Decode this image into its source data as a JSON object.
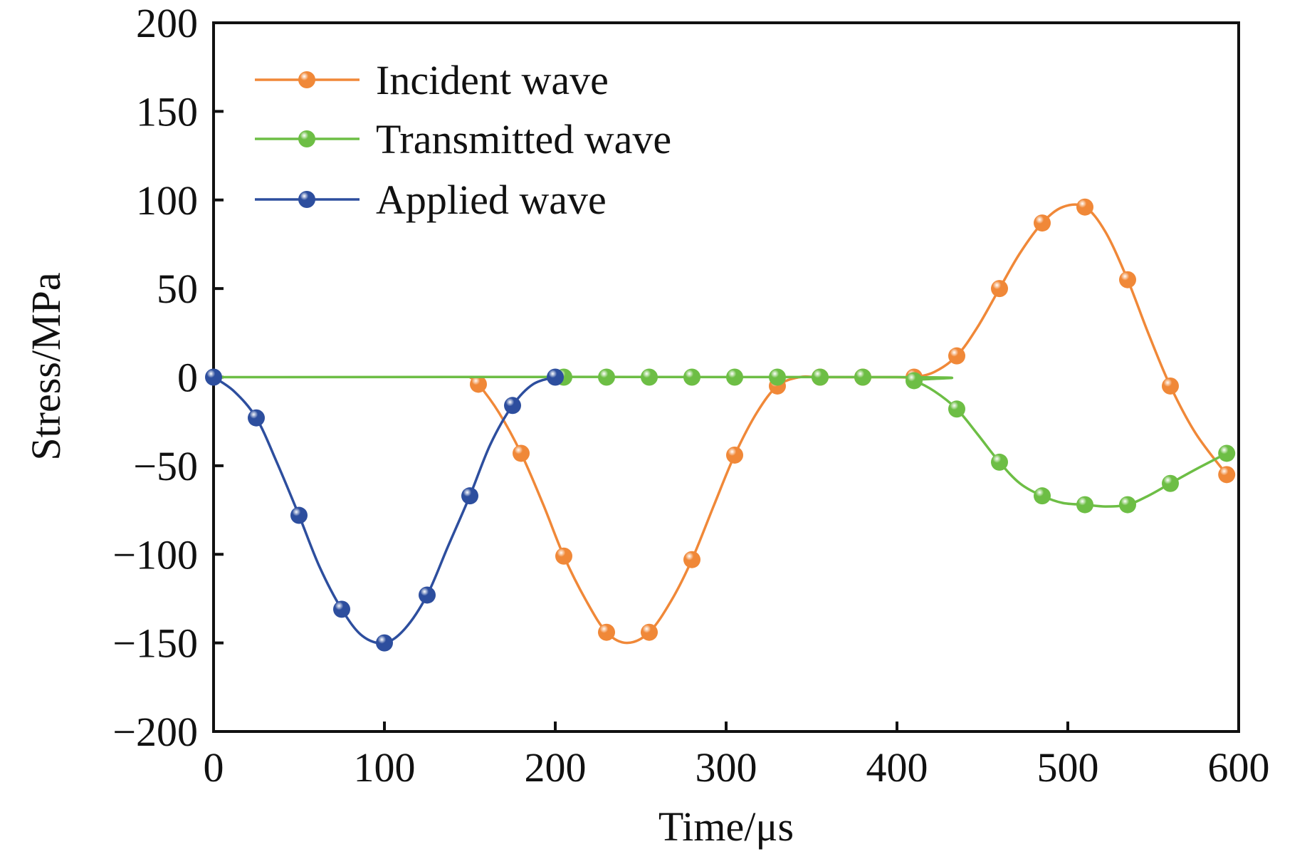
{
  "chart_data": {
    "type": "line",
    "title": "",
    "xlabel": "Time/μs",
    "ylabel": "Stress/MPa",
    "xlim": [
      0,
      600
    ],
    "ylim": [
      -200,
      200
    ],
    "x_ticks": [
      0,
      100,
      200,
      300,
      400,
      500,
      600
    ],
    "y_ticks": [
      200,
      150,
      100,
      50,
      0,
      -50,
      -100,
      -150,
      -200
    ],
    "x_tick_labels": [
      "0",
      "100",
      "200",
      "300",
      "400",
      "500",
      "600"
    ],
    "y_tick_labels": [
      "200",
      "150",
      "100",
      "50",
      "0",
      "−50",
      "−100",
      "−150",
      "−200"
    ],
    "grid": false,
    "legend_position": "top-left",
    "series": [
      {
        "name": "Incident wave",
        "color": "#F08838",
        "markers": [
          [
            155,
            -4
          ],
          [
            180,
            -43
          ],
          [
            205,
            -101
          ],
          [
            230,
            -144
          ],
          [
            255,
            -144
          ],
          [
            280,
            -103
          ],
          [
            305,
            -44
          ],
          [
            330,
            -5
          ],
          [
            355,
            0
          ],
          [
            380,
            0
          ],
          [
            410,
            0
          ],
          [
            435,
            12
          ],
          [
            460,
            50
          ],
          [
            485,
            87
          ],
          [
            510,
            96
          ],
          [
            535,
            55
          ],
          [
            560,
            -5
          ],
          [
            593,
            -55
          ]
        ],
        "curve": [
          [
            150,
            0
          ],
          [
            155,
            -4
          ],
          [
            167,
            -20
          ],
          [
            180,
            -43
          ],
          [
            193,
            -72
          ],
          [
            205,
            -101
          ],
          [
            218,
            -126
          ],
          [
            230,
            -144
          ],
          [
            242,
            -150
          ],
          [
            255,
            -144
          ],
          [
            268,
            -126
          ],
          [
            280,
            -103
          ],
          [
            293,
            -72
          ],
          [
            305,
            -44
          ],
          [
            318,
            -20
          ],
          [
            330,
            -5
          ],
          [
            343,
            0
          ],
          [
            355,
            0
          ],
          [
            380,
            0
          ],
          [
            400,
            0
          ],
          [
            410,
            0
          ],
          [
            422,
            3
          ],
          [
            435,
            12
          ],
          [
            447,
            28
          ],
          [
            460,
            50
          ],
          [
            472,
            70
          ],
          [
            485,
            87
          ],
          [
            497,
            96
          ],
          [
            510,
            96
          ],
          [
            522,
            82
          ],
          [
            535,
            55
          ],
          [
            547,
            25
          ],
          [
            560,
            -5
          ],
          [
            575,
            -32
          ],
          [
            593,
            -55
          ]
        ]
      },
      {
        "name": "Transmitted wave",
        "color": "#6DBE45",
        "markers": [
          [
            205,
            0
          ],
          [
            230,
            0
          ],
          [
            255,
            0
          ],
          [
            280,
            0
          ],
          [
            305,
            0
          ],
          [
            330,
            0
          ],
          [
            355,
            0
          ],
          [
            380,
            0
          ],
          [
            410,
            -2
          ],
          [
            435,
            -18
          ],
          [
            460,
            -48
          ],
          [
            485,
            -67
          ],
          [
            510,
            -72
          ],
          [
            535,
            -72
          ],
          [
            560,
            -60
          ],
          [
            593,
            -43
          ]
        ],
        "curve": [
          [
            0,
            0
          ],
          [
            400,
            0
          ],
          [
            410,
            -2
          ],
          [
            422,
            -8
          ],
          [
            435,
            -18
          ],
          [
            447,
            -32
          ],
          [
            460,
            -48
          ],
          [
            472,
            -60
          ],
          [
            485,
            -67
          ],
          [
            497,
            -71
          ],
          [
            510,
            -72
          ],
          [
            522,
            -73
          ],
          [
            535,
            -72
          ],
          [
            547,
            -67
          ],
          [
            560,
            -60
          ],
          [
            575,
            -52
          ],
          [
            593,
            -43
          ]
        ]
      },
      {
        "name": "Applied wave",
        "color": "#2D4E9E",
        "markers": [
          [
            0,
            0
          ],
          [
            25,
            -23
          ],
          [
            50,
            -78
          ],
          [
            75,
            -131
          ],
          [
            100,
            -150
          ],
          [
            125,
            -123
          ],
          [
            150,
            -67
          ],
          [
            175,
            -16
          ],
          [
            200,
            0
          ]
        ],
        "curve": [
          [
            0,
            0
          ],
          [
            12,
            -8
          ],
          [
            25,
            -23
          ],
          [
            37,
            -48
          ],
          [
            50,
            -78
          ],
          [
            62,
            -107
          ],
          [
            75,
            -131
          ],
          [
            87,
            -146
          ],
          [
            100,
            -150
          ],
          [
            112,
            -142
          ],
          [
            125,
            -123
          ],
          [
            137,
            -96
          ],
          [
            150,
            -67
          ],
          [
            162,
            -38
          ],
          [
            175,
            -16
          ],
          [
            187,
            -4
          ],
          [
            200,
            0
          ]
        ]
      }
    ]
  }
}
